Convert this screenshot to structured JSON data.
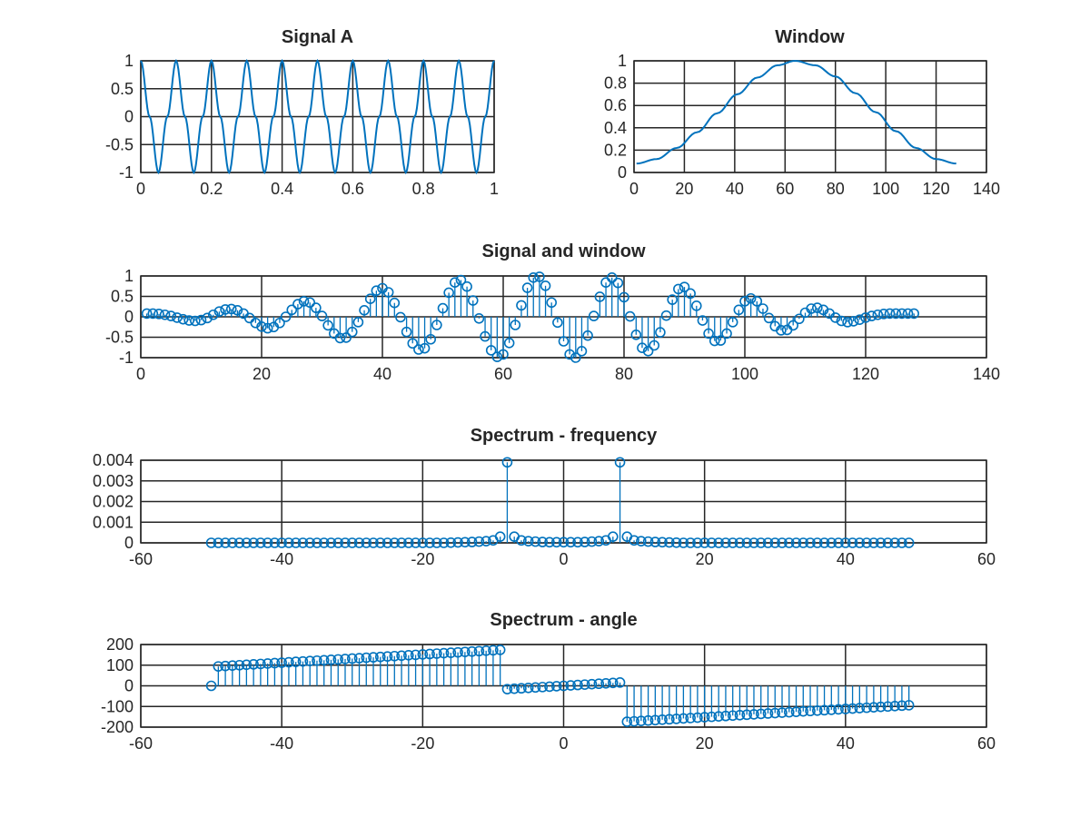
{
  "figure": {
    "background": "#ffffff",
    "series_color": "#0072bd"
  },
  "chart_data": [
    {
      "type": "line",
      "title": "Signal A",
      "xlabel": "",
      "ylabel": "",
      "xlim": [
        0,
        1
      ],
      "ylim": [
        -1,
        1
      ],
      "xticks": [
        0,
        0.2,
        0.4,
        0.6,
        0.8,
        1
      ],
      "xtick_labels": [
        "0",
        "0.2",
        "0.4",
        "0.6",
        "0.8",
        "1"
      ],
      "yticks": [
        -1,
        -0.5,
        0,
        0.5,
        1
      ],
      "ytick_labels": [
        "-1",
        "-0.5",
        "0",
        "0.5",
        "1"
      ],
      "grid": true,
      "series": [
        {
          "style": "line",
          "color": "#0072bd",
          "x": [
            0,
            0.025,
            0.05,
            0.075,
            0.1,
            0.125,
            0.15,
            0.175,
            0.2,
            0.225,
            0.25,
            0.275,
            0.3,
            0.325,
            0.35,
            0.375,
            0.4,
            0.425,
            0.45,
            0.475,
            0.5,
            0.525,
            0.55,
            0.575,
            0.6,
            0.625,
            0.65,
            0.675,
            0.7,
            0.725,
            0.75,
            0.775,
            0.8,
            0.825,
            0.85,
            0.875,
            0.9,
            0.925,
            0.95,
            0.975,
            1
          ],
          "y": [
            1,
            0,
            -1,
            0,
            1,
            0,
            -1,
            0,
            1,
            0,
            -1,
            0,
            1,
            0,
            -1,
            0,
            1,
            0,
            -1,
            0,
            1,
            0,
            -1,
            0,
            1,
            0,
            -1,
            0,
            1,
            0,
            -1,
            0,
            1,
            0,
            -1,
            0,
            1,
            0,
            -1,
            0,
            1
          ]
        }
      ]
    },
    {
      "type": "line",
      "title": "Window",
      "xlabel": "",
      "ylabel": "",
      "xlim": [
        0,
        140
      ],
      "ylim": [
        0,
        1
      ],
      "xticks": [
        0,
        20,
        40,
        60,
        80,
        100,
        120,
        140
      ],
      "xtick_labels": [
        "0",
        "20",
        "40",
        "60",
        "80",
        "100",
        "120",
        "140"
      ],
      "yticks": [
        0,
        0.2,
        0.4,
        0.6,
        0.8,
        1
      ],
      "ytick_labels": [
        "0",
        "0.2",
        "0.4",
        "0.6",
        "0.8",
        "1"
      ],
      "grid": true,
      "series": [
        {
          "style": "line",
          "color": "#0072bd",
          "x": [
            1,
            9,
            17,
            25,
            33,
            41,
            49,
            57,
            64,
            72,
            80,
            88,
            96,
            104,
            112,
            120,
            128
          ],
          "y": [
            0.08,
            0.12,
            0.22,
            0.36,
            0.53,
            0.7,
            0.85,
            0.96,
            1.0,
            0.96,
            0.86,
            0.71,
            0.54,
            0.37,
            0.22,
            0.12,
            0.08
          ]
        }
      ]
    },
    {
      "type": "stem",
      "title": "Signal and window",
      "xlabel": "",
      "ylabel": "",
      "xlim": [
        0,
        140
      ],
      "ylim": [
        -1,
        1
      ],
      "xticks": [
        0,
        20,
        40,
        60,
        80,
        100,
        120,
        140
      ],
      "xtick_labels": [
        "0",
        "20",
        "40",
        "60",
        "80",
        "100",
        "120",
        "140"
      ],
      "yticks": [
        -1,
        -0.5,
        0,
        0.5,
        1
      ],
      "ytick_labels": [
        "-1",
        "-0.5",
        "0",
        "0.5",
        "1"
      ],
      "grid": true,
      "series": [
        {
          "style": "stem",
          "color": "#0072bd",
          "x": [
            1,
            2,
            3,
            4,
            5,
            6,
            7,
            8,
            9,
            10,
            11,
            12,
            13,
            14,
            15,
            16,
            17,
            18,
            19,
            20,
            21,
            22,
            23,
            24,
            25,
            26,
            27,
            28,
            29,
            30,
            31,
            32,
            33,
            34,
            35,
            36,
            37,
            38,
            39,
            40,
            41,
            42,
            43,
            44,
            45,
            46,
            47,
            48,
            49,
            50,
            51,
            52,
            53,
            54,
            55,
            56,
            57,
            58,
            59,
            60,
            61,
            62,
            63,
            64,
            65,
            66,
            67,
            68,
            69,
            70,
            71,
            72,
            73,
            74,
            75,
            76,
            77,
            78,
            79,
            80,
            81,
            82,
            83,
            84,
            85,
            86,
            87,
            88,
            89,
            90,
            91,
            92,
            93,
            94,
            95,
            96,
            97,
            98,
            99,
            100,
            101,
            102,
            103,
            104,
            105,
            106,
            107,
            108,
            109,
            110,
            111,
            112,
            113,
            114,
            115,
            116,
            117,
            118,
            119,
            120,
            121,
            122,
            123,
            124,
            125,
            126,
            127,
            128
          ],
          "y": [
            0.08,
            0.08,
            0.07,
            0.05,
            0.02,
            -0.02,
            -0.06,
            -0.09,
            -0.1,
            -0.08,
            -0.03,
            0.05,
            0.13,
            0.18,
            0.19,
            0.16,
            0.08,
            -0.03,
            -0.15,
            -0.24,
            -0.28,
            -0.25,
            -0.15,
            0.0,
            0.17,
            0.31,
            0.38,
            0.35,
            0.22,
            0.02,
            -0.21,
            -0.41,
            -0.52,
            -0.51,
            -0.37,
            -0.13,
            0.16,
            0.44,
            0.64,
            0.7,
            0.6,
            0.34,
            -0.01,
            -0.37,
            -0.65,
            -0.8,
            -0.77,
            -0.55,
            -0.2,
            0.21,
            0.59,
            0.84,
            0.9,
            0.74,
            0.4,
            -0.04,
            -0.48,
            -0.82,
            -0.98,
            -0.92,
            -0.64,
            -0.2,
            0.28,
            0.71,
            0.96,
            0.98,
            0.76,
            0.35,
            -0.14,
            -0.6,
            -0.92,
            -1.0,
            -0.84,
            -0.46,
            0.02,
            0.49,
            0.84,
            0.96,
            0.83,
            0.48,
            0.01,
            -0.44,
            -0.76,
            -0.84,
            -0.7,
            -0.38,
            0.03,
            0.42,
            0.68,
            0.73,
            0.57,
            0.27,
            -0.09,
            -0.41,
            -0.59,
            -0.58,
            -0.41,
            -0.13,
            0.17,
            0.38,
            0.45,
            0.38,
            0.2,
            -0.03,
            -0.23,
            -0.33,
            -0.32,
            -0.21,
            -0.05,
            0.1,
            0.2,
            0.22,
            0.17,
            0.08,
            -0.02,
            -0.1,
            -0.13,
            -0.11,
            -0.07,
            -0.02,
            0.02,
            0.05,
            0.07,
            0.08,
            0.08,
            0.08,
            0.08,
            0.08
          ]
        }
      ]
    },
    {
      "type": "stem",
      "title": "Spectrum - frequency",
      "xlabel": "",
      "ylabel": "",
      "xlim": [
        -60,
        60
      ],
      "ylim": [
        0,
        0.004
      ],
      "xticks": [
        -60,
        -40,
        -20,
        0,
        20,
        40,
        60
      ],
      "xtick_labels": [
        "-60",
        "-40",
        "-20",
        "0",
        "20",
        "40",
        "60"
      ],
      "yticks": [
        0,
        0.001,
        0.002,
        0.003,
        0.004
      ],
      "ytick_labels": [
        "0",
        "0.001",
        "0.002",
        "0.003",
        "0.004"
      ],
      "grid": true,
      "series": [
        {
          "style": "stem",
          "color": "#0072bd",
          "x": [
            -50,
            -49,
            -48,
            -47,
            -46,
            -45,
            -44,
            -43,
            -42,
            -41,
            -40,
            -39,
            -38,
            -37,
            -36,
            -35,
            -34,
            -33,
            -32,
            -31,
            -30,
            -29,
            -28,
            -27,
            -26,
            -25,
            -24,
            -23,
            -22,
            -21,
            -20,
            -19,
            -18,
            -17,
            -16,
            -15,
            -14,
            -13,
            -12,
            -11,
            -10,
            -9,
            -8,
            -7,
            -6,
            -5,
            -4,
            -3,
            -2,
            -1,
            0,
            1,
            2,
            3,
            4,
            5,
            6,
            7,
            8,
            9,
            10,
            11,
            12,
            13,
            14,
            15,
            16,
            17,
            18,
            19,
            20,
            21,
            22,
            23,
            24,
            25,
            26,
            27,
            28,
            29,
            30,
            31,
            32,
            33,
            34,
            35,
            36,
            37,
            38,
            39,
            40,
            41,
            42,
            43,
            44,
            45,
            46,
            47,
            48,
            49
          ],
          "y": [
            0,
            0,
            0,
            0,
            0,
            0,
            0,
            0,
            0,
            0,
            0,
            0,
            0,
            0,
            0,
            0,
            0,
            0,
            0,
            0,
            0,
            0,
            0,
            0,
            0,
            0,
            0,
            0,
            0,
            0,
            0,
            0,
            0,
            0,
            1e-05,
            2e-05,
            3e-05,
            4e-05,
            6e-05,
            8e-05,
            0.00012,
            0.0003,
            0.0039,
            0.0003,
            0.00012,
            8e-05,
            6e-05,
            4e-05,
            3e-05,
            3e-05,
            3e-05,
            3e-05,
            3e-05,
            4e-05,
            6e-05,
            8e-05,
            0.00012,
            0.0003,
            0.0039,
            0.0003,
            0.00012,
            8e-05,
            6e-05,
            4e-05,
            3e-05,
            2e-05,
            1e-05,
            0,
            0,
            0,
            0,
            0,
            0,
            0,
            0,
            0,
            0,
            0,
            0,
            0,
            0,
            0,
            0,
            0,
            0,
            0,
            0,
            0,
            0,
            0,
            0,
            0,
            0,
            0,
            0,
            0,
            0,
            0,
            0,
            0
          ]
        }
      ]
    },
    {
      "type": "stem",
      "title": "Spectrum - angle",
      "xlabel": "",
      "ylabel": "",
      "xlim": [
        -60,
        60
      ],
      "ylim": [
        -200,
        200
      ],
      "xticks": [
        -60,
        -40,
        -20,
        0,
        20,
        40,
        60
      ],
      "xtick_labels": [
        "-60",
        "-40",
        "-20",
        "0",
        "20",
        "40",
        "60"
      ],
      "yticks": [
        -200,
        -100,
        0,
        100,
        200
      ],
      "ytick_labels": [
        "-200",
        "-100",
        "0",
        "100",
        "200"
      ],
      "grid": true,
      "series": [
        {
          "style": "stem",
          "color": "#0072bd",
          "x": [
            -50,
            -49,
            -48,
            -47,
            -46,
            -45,
            -44,
            -43,
            -42,
            -41,
            -40,
            -39,
            -38,
            -37,
            -36,
            -35,
            -34,
            -33,
            -32,
            -31,
            -30,
            -29,
            -28,
            -27,
            -26,
            -25,
            -24,
            -23,
            -22,
            -21,
            -20,
            -19,
            -18,
            -17,
            -16,
            -15,
            -14,
            -13,
            -12,
            -11,
            -10,
            -9,
            -8,
            -7,
            -6,
            -5,
            -4,
            -3,
            -2,
            -1,
            0,
            1,
            2,
            3,
            4,
            5,
            6,
            7,
            8,
            9,
            10,
            11,
            12,
            13,
            14,
            15,
            16,
            17,
            18,
            19,
            20,
            21,
            22,
            23,
            24,
            25,
            26,
            27,
            28,
            29,
            30,
            31,
            32,
            33,
            34,
            35,
            36,
            37,
            38,
            39,
            40,
            41,
            42,
            43,
            44,
            45,
            46,
            47,
            48,
            49
          ],
          "y": [
            0,
            94,
            96,
            98,
            100,
            102,
            104,
            106,
            108,
            110,
            112,
            114,
            116,
            118,
            120,
            122,
            124,
            126,
            128,
            130,
            132,
            134,
            136,
            138,
            140,
            142,
            144,
            146,
            148,
            150,
            152,
            154,
            156,
            158,
            160,
            162,
            164,
            166,
            168,
            170,
            172,
            174,
            -16,
            -14,
            -12,
            -10,
            -8,
            -6,
            -4,
            -2,
            0,
            2,
            4,
            6,
            8,
            10,
            12,
            14,
            16,
            -174,
            -172,
            -170,
            -168,
            -166,
            -164,
            -162,
            -160,
            -158,
            -156,
            -154,
            -152,
            -150,
            -148,
            -146,
            -144,
            -142,
            -140,
            -138,
            -136,
            -134,
            -132,
            -130,
            -128,
            -126,
            -124,
            -122,
            -120,
            -118,
            -116,
            -114,
            -112,
            -110,
            -108,
            -106,
            -104,
            -102,
            -100,
            -98,
            -96,
            -94
          ]
        }
      ]
    }
  ]
}
